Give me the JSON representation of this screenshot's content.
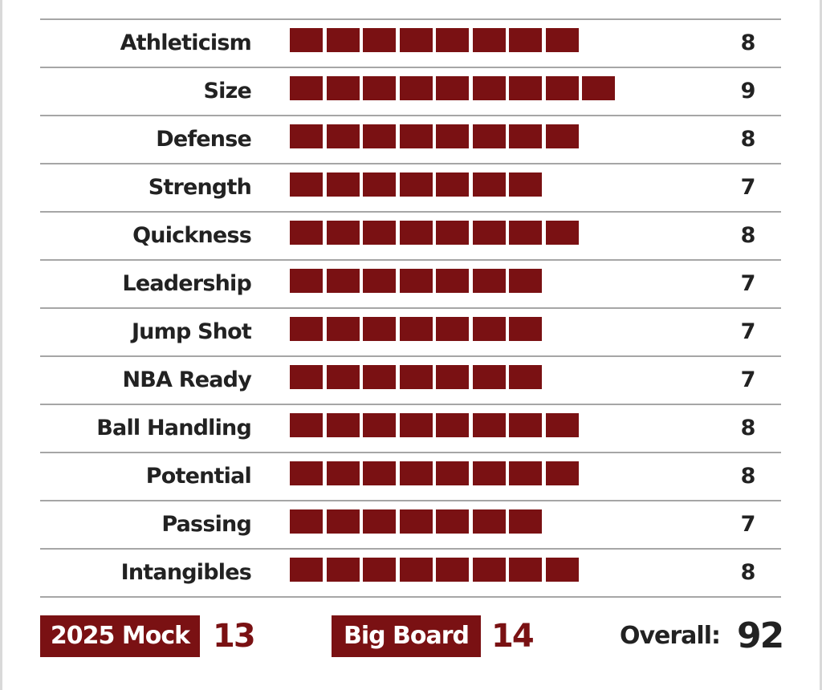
{
  "ratings": [
    {
      "label": "Athleticism",
      "value": 8
    },
    {
      "label": "Size",
      "value": 9
    },
    {
      "label": "Defense",
      "value": 8
    },
    {
      "label": "Strength",
      "value": 7
    },
    {
      "label": "Quickness",
      "value": 8
    },
    {
      "label": "Leadership",
      "value": 7
    },
    {
      "label": "Jump Shot",
      "value": 7
    },
    {
      "label": "NBA Ready",
      "value": 7
    },
    {
      "label": "Ball Handling",
      "value": 8
    },
    {
      "label": "Potential",
      "value": 8
    },
    {
      "label": "Passing",
      "value": 7
    },
    {
      "label": "Intangibles",
      "value": 8
    }
  ],
  "footer": {
    "mock": {
      "label": "2025 Mock",
      "value": 13
    },
    "big_board": {
      "label": "Big Board",
      "value": 14
    },
    "overall": {
      "label": "Overall:",
      "value": 92
    }
  }
}
